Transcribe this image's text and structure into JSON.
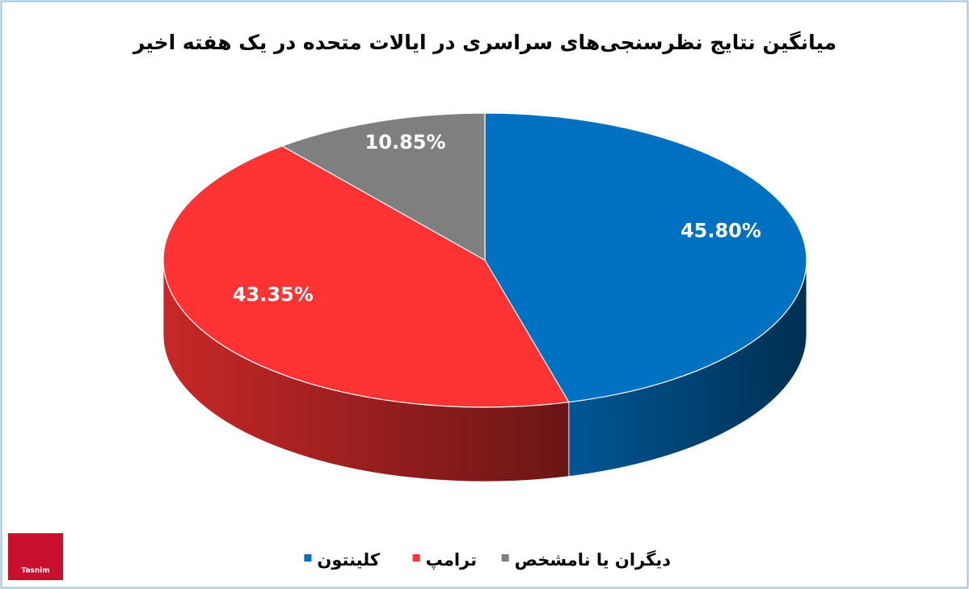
{
  "chart_data": {
    "type": "pie",
    "three_d": true,
    "title": "میانگین نتایج نظرسنجی‌های سراسری در ایالات متحده در یک هفته اخیر",
    "categories": [
      "کلینتون",
      "ترامپ",
      "دیگران یا نامشخص"
    ],
    "values": [
      45.8,
      43.35,
      10.85
    ],
    "value_labels": [
      "45.80%",
      "43.35%",
      "10.85%"
    ],
    "colors": [
      "#0070c0",
      "#ff3333",
      "#7f7f7f"
    ],
    "legend": "bottom",
    "logo": "Tasnim"
  }
}
